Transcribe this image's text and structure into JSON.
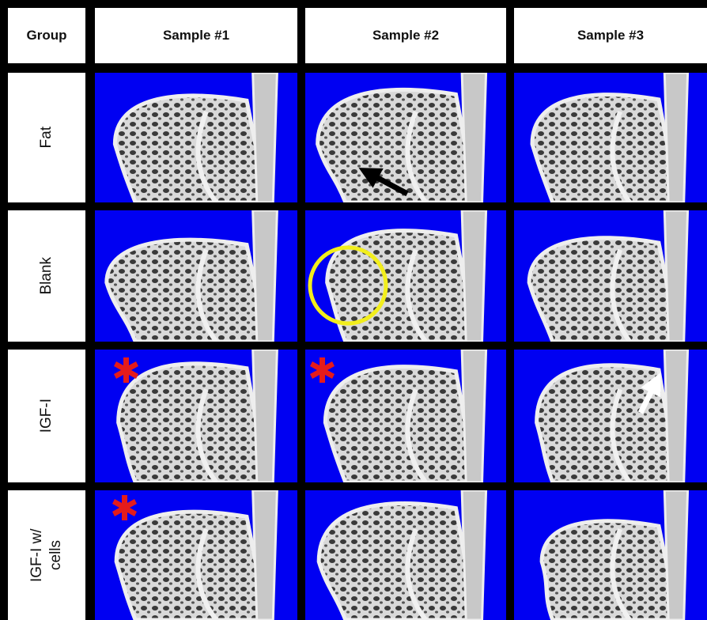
{
  "table": {
    "header": [
      "Group",
      "Sample #1",
      "Sample #2",
      "Sample #3"
    ],
    "rows": [
      {
        "label": "Fat"
      },
      {
        "label": "Blank"
      },
      {
        "label": "IGF-I"
      },
      {
        "label": "IGF-I w/ cells"
      }
    ]
  }
}
